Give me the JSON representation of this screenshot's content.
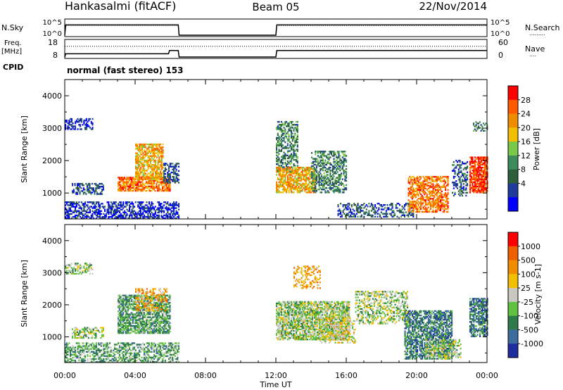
{
  "header": {
    "station": "Hankasalmi (fitACF)",
    "beam": "Beam 05",
    "date": "22/Nov/2014"
  },
  "noise_panel": {
    "left_label": "N.Sky",
    "left_ticks": [
      "10^5",
      "10^0"
    ],
    "right_ticks": [
      "10^5",
      "10^0"
    ],
    "right_label": "N.Search",
    "right_style_key": "........."
  },
  "freq_panel": {
    "left_label_1": "Freq.",
    "left_label_2": "[MHz]",
    "left_ticks": [
      "18",
      "8"
    ],
    "right_ticks": [
      "60",
      "0"
    ],
    "right_label": "Nave",
    "right_style_key": "...."
  },
  "cpid": {
    "label": "CPID",
    "program": "normal (fast stereo) 153"
  },
  "time_axis": {
    "label": "Time UT",
    "ticks": [
      "00:00",
      "04:00",
      "08:00",
      "12:00",
      "16:00",
      "20:00",
      "00:00"
    ]
  },
  "range_axis": {
    "label": "Slant Range [km]",
    "ticks": [
      "4000",
      "3000",
      "2000",
      "1000"
    ]
  },
  "colors": {
    "power": [
      "#0000ff",
      "#1e3c9b",
      "#2e5f3b",
      "#3c8c5c",
      "#78c84a",
      "#f0c000",
      "#f08c00",
      "#ff5a00",
      "#ff0000"
    ],
    "velocity": [
      "#1e2ca0",
      "#3c6ca0",
      "#2e7a4a",
      "#60c040",
      "#c8c8c0",
      "#f0c000",
      "#f08c00",
      "#f06000",
      "#ff0000"
    ]
  },
  "chart_data": [
    {
      "type": "line",
      "name": "noise-levels",
      "x_unit": "UT hours",
      "xlim": [
        0,
        24
      ],
      "y_scale": "log",
      "ylim": [
        1,
        100000
      ],
      "series": [
        {
          "name": "N.Sky",
          "style": "solid",
          "x": [
            0,
            0.05,
            6.45,
            6.5,
            12.0,
            12.05,
            24.0
          ],
          "y": [
            1,
            3000,
            3000,
            1,
            1,
            3000,
            3000
          ]
        },
        {
          "name": "N.Search",
          "style": "dotted",
          "x": [
            0,
            0.05,
            6.45,
            6.5,
            12.0,
            12.05,
            24.0
          ],
          "y": [
            1,
            2000,
            2000,
            1,
            1,
            2000,
            2000
          ]
        }
      ]
    },
    {
      "type": "line",
      "name": "frequency-nave",
      "x_unit": "UT hours",
      "xlim": [
        0,
        24
      ],
      "series": [
        {
          "name": "Freq. [MHz]",
          "style": "solid",
          "ylim": [
            8,
            18
          ],
          "x": [
            0,
            0.05,
            5.9,
            5.95,
            6.45,
            6.5,
            12.0,
            12.05,
            24.0
          ],
          "y": [
            8,
            10,
            10,
            12,
            12,
            8,
            8,
            12,
            12
          ]
        },
        {
          "name": "Nave",
          "style": "dotted",
          "ylim": [
            0,
            60
          ],
          "x": [
            0,
            6.5,
            12.0,
            24.0
          ],
          "y": [
            40,
            40,
            40,
            40
          ]
        }
      ]
    },
    {
      "type": "heatmap",
      "name": "power",
      "xlabel": "Time UT",
      "ylabel": "Slant Range [km]",
      "xlim": [
        0,
        24
      ],
      "ylim": [
        200,
        4500
      ],
      "colorbar": {
        "label": "Power [dB]",
        "ticks": [
          "28",
          "24",
          "20",
          "16",
          "12",
          "8",
          "4"
        ],
        "range": [
          0,
          32
        ]
      },
      "regions": [
        {
          "t": [
            0,
            6.5
          ],
          "r": [
            200,
            700
          ],
          "level": 1,
          "density": 0.55
        },
        {
          "t": [
            0,
            1.6
          ],
          "r": [
            2950,
            3300
          ],
          "level": 1,
          "density": 0.45
        },
        {
          "t": [
            0.4,
            2.2
          ],
          "r": [
            950,
            1300
          ],
          "level": 2,
          "density": 0.5
        },
        {
          "t": [
            3.0,
            6.0
          ],
          "r": [
            1050,
            1500
          ],
          "level": 7,
          "density": 0.75
        },
        {
          "t": [
            4.0,
            5.6
          ],
          "r": [
            1400,
            2500
          ],
          "level": 6,
          "density": 0.65
        },
        {
          "t": [
            5.6,
            6.5
          ],
          "r": [
            1300,
            1900
          ],
          "level": 2,
          "density": 0.5
        },
        {
          "t": [
            12.0,
            13.2
          ],
          "r": [
            1600,
            3200
          ],
          "level": 3,
          "density": 0.5
        },
        {
          "t": [
            12.0,
            14.3
          ],
          "r": [
            1000,
            1800
          ],
          "level": 6,
          "density": 0.7
        },
        {
          "t": [
            14.0,
            16.0
          ],
          "r": [
            1000,
            2300
          ],
          "level": 3,
          "density": 0.5
        },
        {
          "t": [
            15.5,
            19.8
          ],
          "r": [
            250,
            700
          ],
          "level": 2,
          "density": 0.4
        },
        {
          "t": [
            19.5,
            21.8
          ],
          "r": [
            400,
            1500
          ],
          "level": 7,
          "density": 0.6
        },
        {
          "t": [
            22.0,
            22.9
          ],
          "r": [
            900,
            2000
          ],
          "level": 2,
          "density": 0.45
        },
        {
          "t": [
            23.0,
            24.0
          ],
          "r": [
            1000,
            2100
          ],
          "level": 8,
          "density": 0.8
        },
        {
          "t": [
            23.2,
            24.0
          ],
          "r": [
            2900,
            3200
          ],
          "level": 3,
          "density": 0.4
        }
      ]
    },
    {
      "type": "heatmap",
      "name": "velocity",
      "xlabel": "Time UT",
      "ylabel": "Slant Range [km]",
      "xlim": [
        0,
        24
      ],
      "ylim": [
        200,
        4500
      ],
      "colorbar": {
        "label": "Velocity [m s-1]",
        "ticks": [
          "1000",
          "500",
          "100",
          "25",
          "-25",
          "-100",
          "-500",
          "-1000"
        ]
      },
      "regions": [
        {
          "t": [
            0,
            6.5
          ],
          "r": [
            200,
            800
          ],
          "level": 3,
          "density": 0.5
        },
        {
          "t": [
            0,
            1.6
          ],
          "r": [
            2950,
            3300
          ],
          "level": 4,
          "density": 0.45
        },
        {
          "t": [
            0.4,
            2.2
          ],
          "r": [
            950,
            1300
          ],
          "level": 4,
          "density": 0.45
        },
        {
          "t": [
            3.0,
            6.0
          ],
          "r": [
            1100,
            2300
          ],
          "level": 3,
          "density": 0.7
        },
        {
          "t": [
            4.0,
            5.8
          ],
          "r": [
            1800,
            2500
          ],
          "level": 6,
          "density": 0.35
        },
        {
          "t": [
            12.0,
            16.2
          ],
          "r": [
            900,
            2100
          ],
          "level": 4,
          "density": 0.75
        },
        {
          "t": [
            13.0,
            14.5
          ],
          "r": [
            2500,
            3200
          ],
          "level": 6,
          "density": 0.35
        },
        {
          "t": [
            14.5,
            16.5
          ],
          "r": [
            800,
            1600
          ],
          "level": 5,
          "density": 0.4
        },
        {
          "t": [
            16.5,
            19.5
          ],
          "r": [
            1400,
            2400
          ],
          "level": 4,
          "density": 0.45
        },
        {
          "t": [
            19.3,
            22.0
          ],
          "r": [
            300,
            1800
          ],
          "level": 2,
          "density": 0.65
        },
        {
          "t": [
            20.5,
            22.5
          ],
          "r": [
            300,
            900
          ],
          "level": 4,
          "density": 0.5
        },
        {
          "t": [
            23.0,
            24.0
          ],
          "r": [
            1000,
            2200
          ],
          "level": 2,
          "density": 0.7
        }
      ]
    }
  ]
}
